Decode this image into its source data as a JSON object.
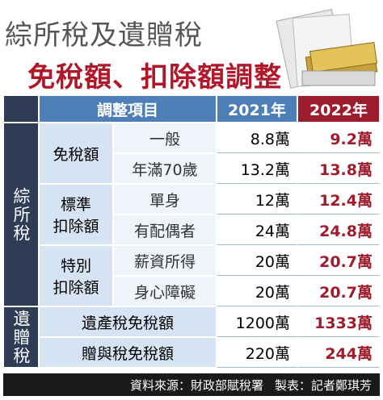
{
  "header": {
    "title": "綜所稅及遺贈稅",
    "subtitle": "免稅額、扣除額調整"
  },
  "table": {
    "columns": [
      "調整項目",
      "2021年",
      "2022年"
    ],
    "sections": [
      {
        "label": "綜所稅",
        "groups": [
          {
            "label": [
              "免稅額"
            ],
            "rows": [
              {
                "item": "一般",
                "y2021": "8.8萬",
                "y2022": "9.2萬"
              },
              {
                "item": "年滿70歲",
                "y2021": "13.2萬",
                "y2022": "13.8萬"
              }
            ]
          },
          {
            "label": [
              "標準",
              "扣除額"
            ],
            "rows": [
              {
                "item": "單身",
                "y2021": "12萬",
                "y2022": "12.4萬"
              },
              {
                "item": "有配偶者",
                "y2021": "24萬",
                "y2022": "24.8萬"
              }
            ]
          },
          {
            "label": [
              "特別",
              "扣除額"
            ],
            "rows": [
              {
                "item": "薪資所得",
                "y2021": "20萬",
                "y2022": "20.7萬"
              },
              {
                "item": "身心障礙",
                "y2021": "20萬",
                "y2022": "20.7萬"
              }
            ]
          }
        ]
      },
      {
        "label": "遺贈稅",
        "rows": [
          {
            "item": "遺產稅免稅額",
            "y2021": "1200萬",
            "y2022": "1333萬"
          },
          {
            "item": "贈與稅免稅額",
            "y2021": "220萬",
            "y2022": "244萬"
          }
        ]
      }
    ]
  },
  "footer": {
    "source": "資料來源：財政部賦稅署",
    "credit": "製表：記者鄭琪芳"
  }
}
